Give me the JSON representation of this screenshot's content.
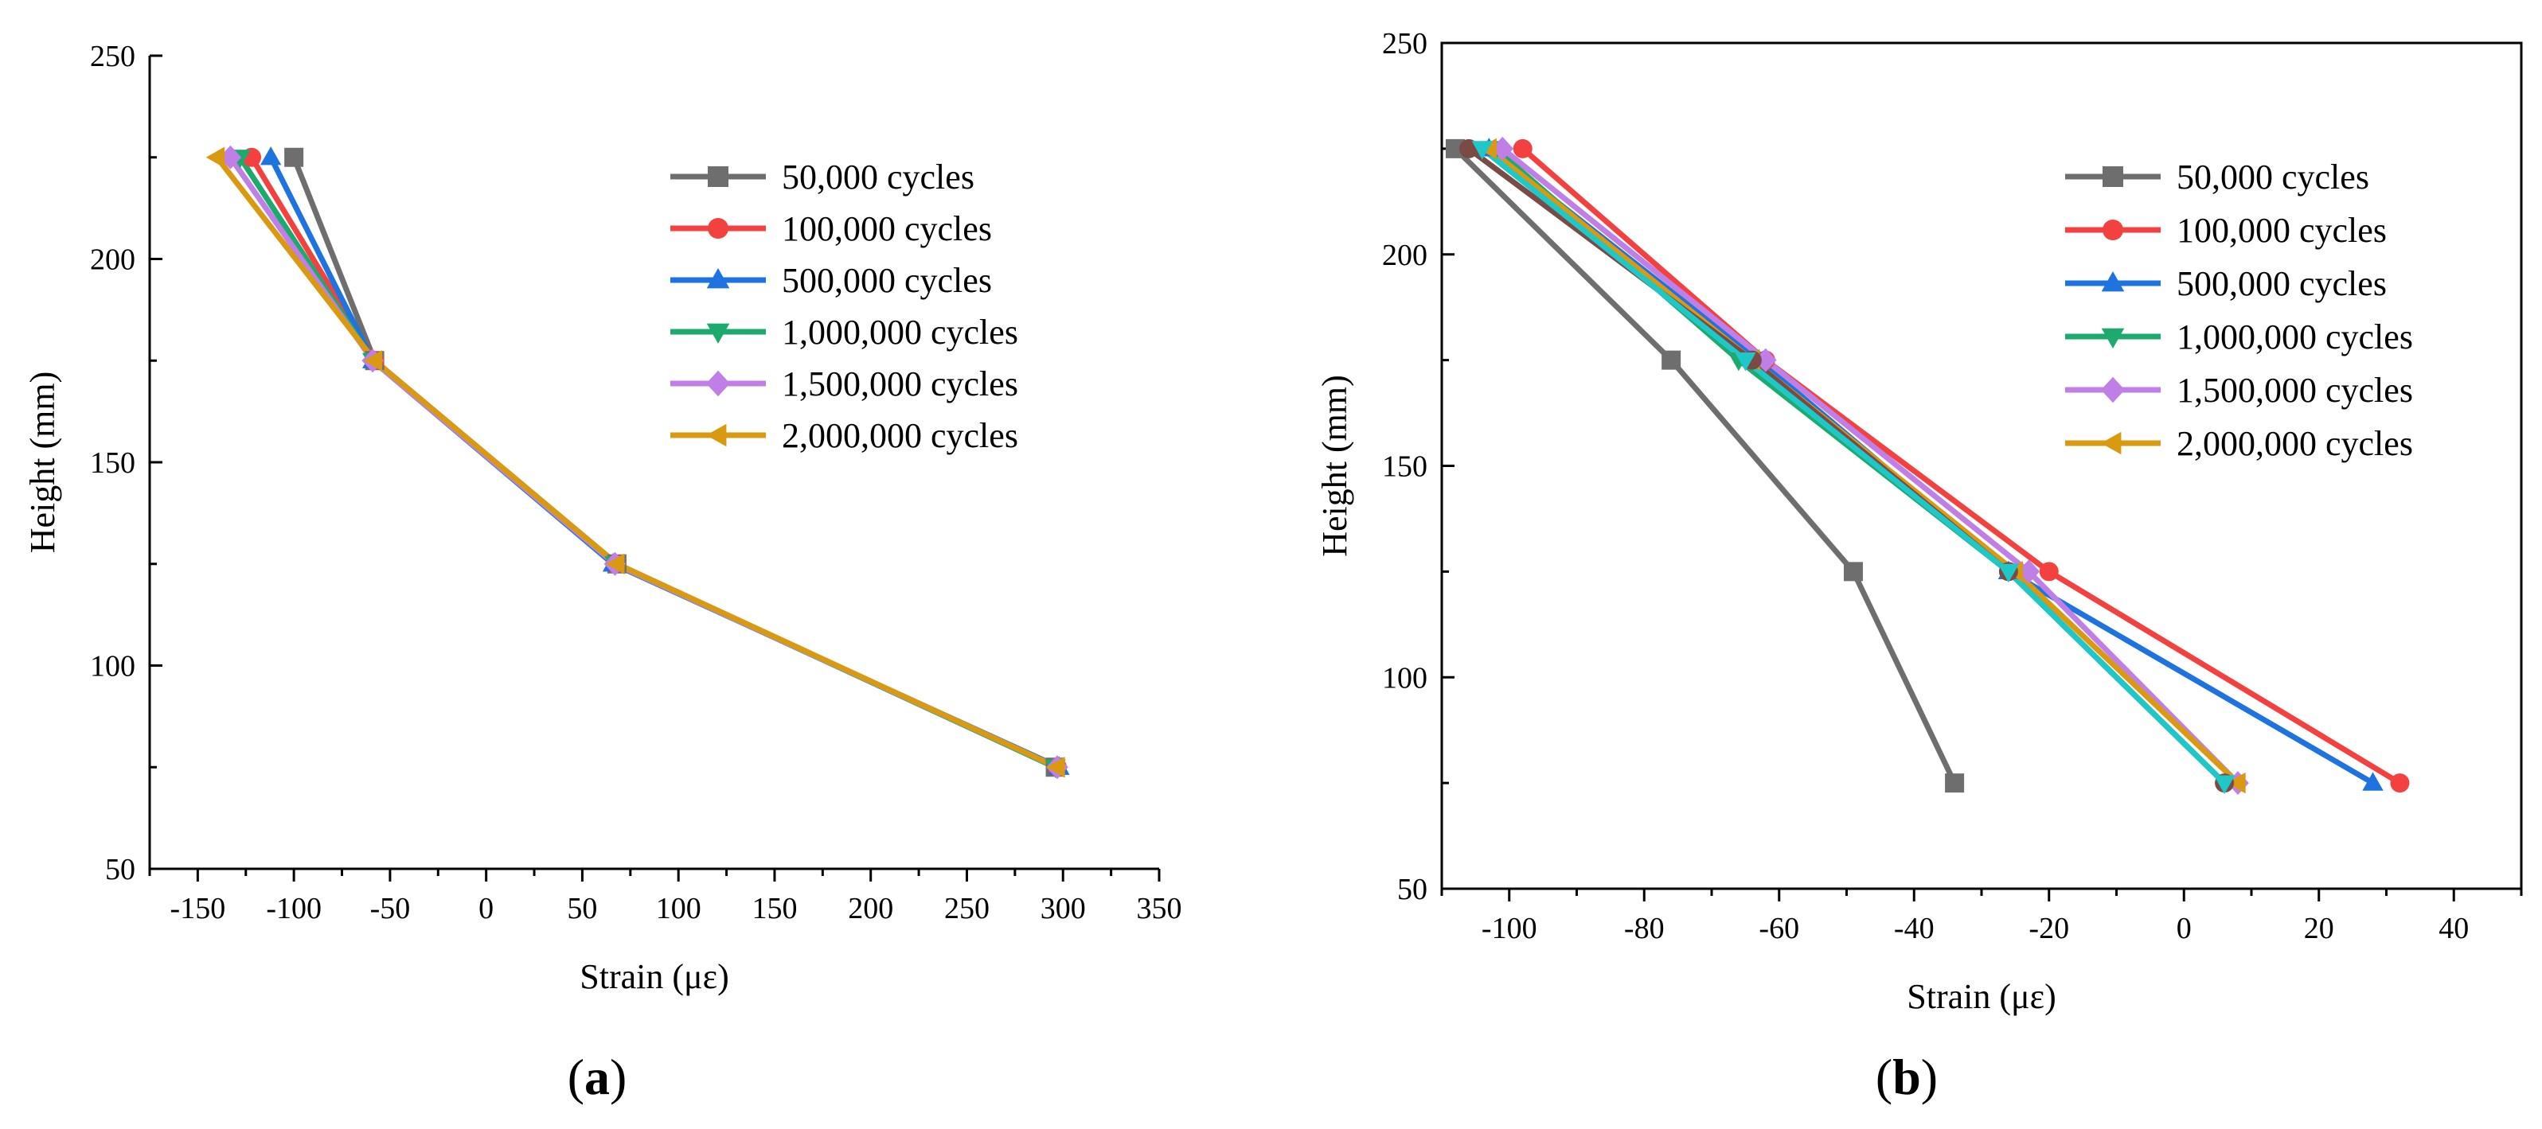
{
  "figure": {
    "panel_a_label": {
      "open": "(",
      "letter": "a",
      "close": ")"
    },
    "panel_b_label": {
      "open": "(",
      "letter": "b",
      "close": ")"
    }
  },
  "series_styles": [
    {
      "name": "50,000 cycles",
      "color": "#6e6e6e",
      "marker": "square"
    },
    {
      "name": "100,000 cycles",
      "color": "#f2413f",
      "marker": "circle"
    },
    {
      "name": "500,000 cycles",
      "color": "#1e73e0",
      "marker": "triangle-up"
    },
    {
      "name": "1,000,000 cycles",
      "color": "#1eaa6e",
      "marker": "triangle-down"
    },
    {
      "name": "1,500,000 cycles",
      "color": "#bf7fe6",
      "marker": "diamond"
    },
    {
      "name": "2,000,000 cycles",
      "color": "#d99a12",
      "marker": "triangle-left"
    }
  ],
  "chart_data": [
    {
      "id": "a",
      "type": "line",
      "title": "",
      "xlabel": "Strain (με)",
      "ylabel": "Height (mm)",
      "xlim": [
        -175,
        350
      ],
      "ylim": [
        50,
        250
      ],
      "xticks": [
        -150,
        -100,
        -50,
        0,
        50,
        100,
        150,
        200,
        250,
        300,
        350
      ],
      "yticks": [
        50,
        100,
        150,
        200,
        250
      ],
      "grid": false,
      "legend_position": "top-right",
      "series": [
        {
          "name": "50,000 cycles",
          "x": [
            -100,
            -58,
            68,
            296
          ],
          "y": [
            225,
            175,
            125,
            75
          ]
        },
        {
          "name": "100,000 cycles",
          "x": [
            -122,
            -58,
            67,
            297
          ],
          "y": [
            225,
            175,
            125,
            75
          ]
        },
        {
          "name": "500,000 cycles",
          "x": [
            -112,
            -59,
            66,
            298
          ],
          "y": [
            225,
            175,
            125,
            75
          ]
        },
        {
          "name": "1,000,000 cycles",
          "x": [
            -128,
            -59,
            67,
            296
          ],
          "y": [
            225,
            175,
            125,
            75
          ]
        },
        {
          "name": "1,500,000 cycles",
          "x": [
            -133,
            -59,
            67,
            297
          ],
          "y": [
            225,
            175,
            125,
            75
          ]
        },
        {
          "name": "2,000,000 cycles",
          "x": [
            -140,
            -58,
            68,
            297
          ],
          "y": [
            225,
            175,
            125,
            75
          ]
        }
      ]
    },
    {
      "id": "b",
      "type": "line",
      "title": "",
      "xlabel": "Strain  (με)",
      "ylabel": "Height (mm)",
      "xlim": [
        -110,
        50
      ],
      "ylim": [
        50,
        250
      ],
      "xticks": [
        -100,
        -80,
        -60,
        -40,
        -20,
        0,
        20,
        40
      ],
      "yticks": [
        50,
        100,
        150,
        200,
        250
      ],
      "grid": false,
      "legend_position": "top-right",
      "series": [
        {
          "name": "50,000 cycles",
          "x": [
            -108,
            -76,
            -49,
            -34
          ],
          "y": [
            225,
            175,
            125,
            75
          ]
        },
        {
          "name": "100,000 cycles",
          "x": [
            -98,
            -62,
            -20,
            32
          ],
          "y": [
            225,
            175,
            125,
            75
          ]
        },
        {
          "name": "500,000 cycles",
          "x": [
            -103,
            -63,
            -26,
            28
          ],
          "y": [
            225,
            175,
            125,
            75
          ]
        },
        {
          "name": "1,000,000 cycles",
          "x": [
            -102,
            -66,
            -26,
            6
          ],
          "y": [
            225,
            175,
            125,
            75
          ]
        },
        {
          "name": "1,500,000 cycles",
          "x": [
            -101,
            -62,
            -23,
            8
          ],
          "y": [
            225,
            175,
            125,
            75
          ]
        },
        {
          "name": "2,000,000 cycles",
          "x": [
            -103,
            -64,
            -25,
            8
          ],
          "y": [
            225,
            175,
            125,
            75
          ]
        }
      ],
      "extra_series": [
        {
          "name": "",
          "color": "#7a4a44",
          "marker": "circle",
          "x": [
            -106,
            -64,
            -26,
            6
          ],
          "y": [
            225,
            175,
            125,
            75
          ]
        },
        {
          "name": "",
          "color": "#1ec8c8",
          "marker": "triangle-down",
          "x": [
            -104,
            -65,
            -26,
            6
          ],
          "y": [
            225,
            175,
            125,
            75
          ]
        }
      ]
    }
  ]
}
